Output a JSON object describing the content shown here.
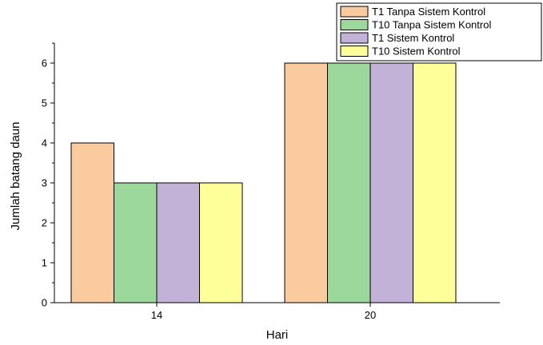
{
  "chart_data": {
    "type": "bar",
    "categories": [
      "14",
      "20"
    ],
    "series": [
      {
        "name": "T1 Tanpa Sistem Kontrol",
        "values": [
          4,
          6
        ],
        "color": "#FACB9E"
      },
      {
        "name": "T10 Tanpa Sistem Kontrol",
        "values": [
          3,
          6
        ],
        "color": "#9CD79C"
      },
      {
        "name": "T1 Sistem Kontrol",
        "values": [
          3,
          6
        ],
        "color": "#C2B2D8"
      },
      {
        "name": "T10 Sistem Kontrol",
        "values": [
          3,
          6
        ],
        "color": "#FFFF99"
      }
    ],
    "xlabel": "Hari",
    "ylabel": "Jumlah batang daun",
    "ylim": [
      0,
      6.5
    ],
    "yticks": [
      0,
      1,
      2,
      3,
      4,
      5,
      6
    ],
    "legend": "top-right",
    "grid": false
  }
}
